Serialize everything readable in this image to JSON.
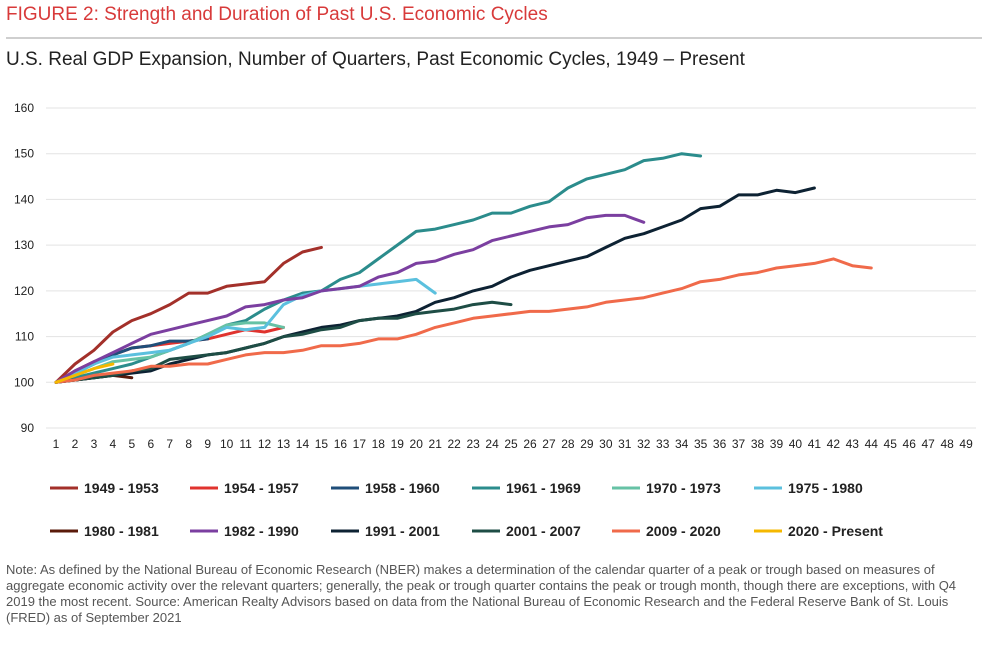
{
  "chart_data": {
    "type": "line",
    "figure_title": "FIGURE 2: Strength and Duration of Past U.S. Economic Cycles",
    "title": "U.S. Real GDP Expansion, Number of Quarters, Past Economic Cycles, 1949 – Present",
    "note": "Note: As defined by the National Bureau of Economic Research (NBER) makes a determination of the calendar quarter of a peak or trough based on measures of aggregate economic activity over the relevant quarters; generally, the peak or trough quarter contains the peak or trough month, though there are exceptions, with Q4 2019 the most recent.  Source: American Realty Advisors based on data from the National Bureau of Economic Research and the Federal Reserve Bank of St. Louis (FRED) as of September 2021",
    "categories": [
      1,
      2,
      3,
      4,
      5,
      6,
      7,
      8,
      9,
      10,
      11,
      12,
      13,
      14,
      15,
      16,
      17,
      18,
      19,
      20,
      21,
      22,
      23,
      24,
      25,
      26,
      27,
      28,
      29,
      30,
      31,
      32,
      33,
      34,
      35,
      36,
      37,
      38,
      39,
      40,
      41,
      42,
      43,
      44,
      45,
      46,
      47,
      48,
      49
    ],
    "ylim": [
      90,
      160
    ],
    "yticks": [
      90,
      100,
      110,
      120,
      130,
      140,
      150,
      160
    ],
    "grid": true,
    "series": [
      {
        "name": "1949 - 1953",
        "color": "#a3302a",
        "values": [
          100,
          104,
          107,
          111,
          113.5,
          115,
          117,
          119.5,
          119.5,
          121,
          121.5,
          122,
          126,
          128.5,
          129.5,
          null,
          null,
          null,
          null,
          null,
          null,
          null,
          null,
          null,
          null,
          null,
          null,
          null,
          null,
          null,
          null,
          null,
          null,
          null,
          null,
          null,
          null,
          null,
          null,
          null,
          null,
          null,
          null,
          null,
          null,
          null,
          null,
          null,
          null
        ]
      },
      {
        "name": "1954 - 1957",
        "color": "#e0332e",
        "values": [
          100,
          102.5,
          104.5,
          106,
          107.5,
          108,
          108.5,
          109,
          109.5,
          110.5,
          111.5,
          111,
          112,
          null,
          null,
          null,
          null,
          null,
          null,
          null,
          null,
          null,
          null,
          null,
          null,
          null,
          null,
          null,
          null,
          null,
          null,
          null,
          null,
          null,
          null,
          null,
          null,
          null,
          null,
          null,
          null,
          null,
          null,
          null,
          null,
          null,
          null,
          null,
          null
        ]
      },
      {
        "name": "1958 - 1960",
        "color": "#1f4e79",
        "values": [
          100,
          102,
          104,
          106,
          107.5,
          108,
          109,
          109,
          109.5,
          null,
          null,
          null,
          null,
          null,
          null,
          null,
          null,
          null,
          null,
          null,
          null,
          null,
          null,
          null,
          null,
          null,
          null,
          null,
          null,
          null,
          null,
          null,
          null,
          null,
          null,
          null,
          null,
          null,
          null,
          null,
          null,
          null,
          null,
          null,
          null,
          null,
          null,
          null,
          null
        ]
      },
      {
        "name": "1961 - 1969",
        "color": "#2b8c8c",
        "values": [
          100,
          101,
          102,
          103,
          104,
          105.5,
          107,
          108.5,
          110.5,
          112.5,
          113.5,
          116,
          118,
          119.5,
          120,
          122.5,
          124,
          127,
          130,
          133,
          133.5,
          134.5,
          135.5,
          137,
          137,
          138.5,
          139.5,
          142.5,
          144.5,
          145.5,
          146.5,
          148.5,
          149,
          150,
          149.5,
          null,
          null,
          null,
          null,
          null,
          null,
          null,
          null,
          null,
          null,
          null,
          null,
          null,
          null
        ]
      },
      {
        "name": "1970 - 1973",
        "color": "#66c2a5",
        "values": [
          100,
          101.5,
          103,
          104.5,
          105,
          105.5,
          107,
          108.5,
          110.5,
          112.5,
          113,
          113,
          112,
          null,
          null,
          null,
          null,
          null,
          null,
          null,
          null,
          null,
          null,
          null,
          null,
          null,
          null,
          null,
          null,
          null,
          null,
          null,
          null,
          null,
          null,
          null,
          null,
          null,
          null,
          null,
          null,
          null,
          null,
          null,
          null,
          null,
          null,
          null,
          null
        ]
      },
      {
        "name": "1975 - 1980",
        "color": "#5bc0de",
        "values": [
          100,
          102,
          104,
          105.5,
          106,
          106.5,
          107,
          108.5,
          110,
          112,
          111.5,
          112,
          117,
          119,
          120,
          120.5,
          121,
          121.5,
          122,
          122.5,
          119.5,
          null,
          null,
          null,
          null,
          null,
          null,
          null,
          null,
          null,
          null,
          null,
          null,
          null,
          null,
          null,
          null,
          null,
          null,
          null,
          null,
          null,
          null,
          null,
          null,
          null,
          null,
          null,
          null
        ]
      },
      {
        "name": "1980 - 1981",
        "color": "#5a1a0a",
        "values": [
          100,
          100.5,
          101,
          101.5,
          101,
          null,
          null,
          null,
          null,
          null,
          null,
          null,
          null,
          null,
          null,
          null,
          null,
          null,
          null,
          null,
          null,
          null,
          null,
          null,
          null,
          null,
          null,
          null,
          null,
          null,
          null,
          null,
          null,
          null,
          null,
          null,
          null,
          null,
          null,
          null,
          null,
          null,
          null,
          null,
          null,
          null,
          null,
          null,
          null
        ]
      },
      {
        "name": "1982 - 1990",
        "color": "#7b3fa0",
        "values": [
          100,
          102.5,
          104.5,
          106.5,
          108.5,
          110.5,
          111.5,
          112.5,
          113.5,
          114.5,
          116.5,
          117,
          118,
          118.5,
          120,
          120.5,
          121,
          123,
          124,
          126,
          126.5,
          128,
          129,
          131,
          132,
          133,
          134,
          134.5,
          136,
          136.5,
          136.5,
          135,
          null,
          null,
          null,
          null,
          null,
          null,
          null,
          null,
          null,
          null,
          null,
          null,
          null,
          null,
          null,
          null,
          null
        ]
      },
      {
        "name": "1991 - 2001",
        "color": "#0d2233",
        "values": [
          100,
          100.5,
          101,
          101.5,
          102,
          102.5,
          104,
          105,
          106,
          106.5,
          107.5,
          108.5,
          110,
          111,
          112,
          112.5,
          113.5,
          114,
          114.5,
          115.5,
          117.5,
          118.5,
          120,
          121,
          123,
          124.5,
          125.5,
          126.5,
          127.5,
          129.5,
          131.5,
          132.5,
          134,
          135.5,
          138,
          138.5,
          141,
          141,
          142,
          141.5,
          142.5,
          null,
          null,
          null,
          null,
          null,
          null,
          null,
          null
        ]
      },
      {
        "name": "2001 - 2007",
        "color": "#1e4d45",
        "values": [
          100,
          100.5,
          101,
          101.5,
          102.5,
          103,
          105,
          105.5,
          106,
          106.5,
          107.5,
          108.5,
          110,
          110.5,
          111.5,
          112,
          113.5,
          114,
          114,
          115,
          115.5,
          116,
          117,
          117.5,
          117,
          null,
          null,
          null,
          null,
          null,
          null,
          null,
          null,
          null,
          null,
          null,
          null,
          null,
          null,
          null,
          null,
          null,
          null,
          null,
          null,
          null,
          null,
          null,
          null
        ]
      },
      {
        "name": "2009 - 2020",
        "color": "#f06a4a",
        "values": [
          100,
          100.5,
          101.5,
          102,
          102.5,
          103.5,
          103.5,
          104,
          104,
          105,
          106,
          106.5,
          106.5,
          107,
          108,
          108,
          108.5,
          109.5,
          109.5,
          110.5,
          112,
          113,
          114,
          114.5,
          115,
          115.5,
          115.5,
          116,
          116.5,
          117.5,
          118,
          118.5,
          119.5,
          120.5,
          122,
          122.5,
          123.5,
          124,
          125,
          125.5,
          126,
          127,
          125.5,
          125,
          null,
          null,
          null,
          null,
          null
        ]
      },
      {
        "name": "2020 - Present",
        "color": "#f5b800",
        "values": [
          100,
          101.5,
          103,
          104,
          null,
          null,
          null,
          null,
          null,
          null,
          null,
          null,
          null,
          null,
          null,
          null,
          null,
          null,
          null,
          null,
          null,
          null,
          null,
          null,
          null,
          null,
          null,
          null,
          null,
          null,
          null,
          null,
          null,
          null,
          null,
          null,
          null,
          null,
          null,
          null,
          null,
          null,
          null,
          null,
          null,
          null,
          null,
          null,
          null
        ]
      }
    ]
  }
}
